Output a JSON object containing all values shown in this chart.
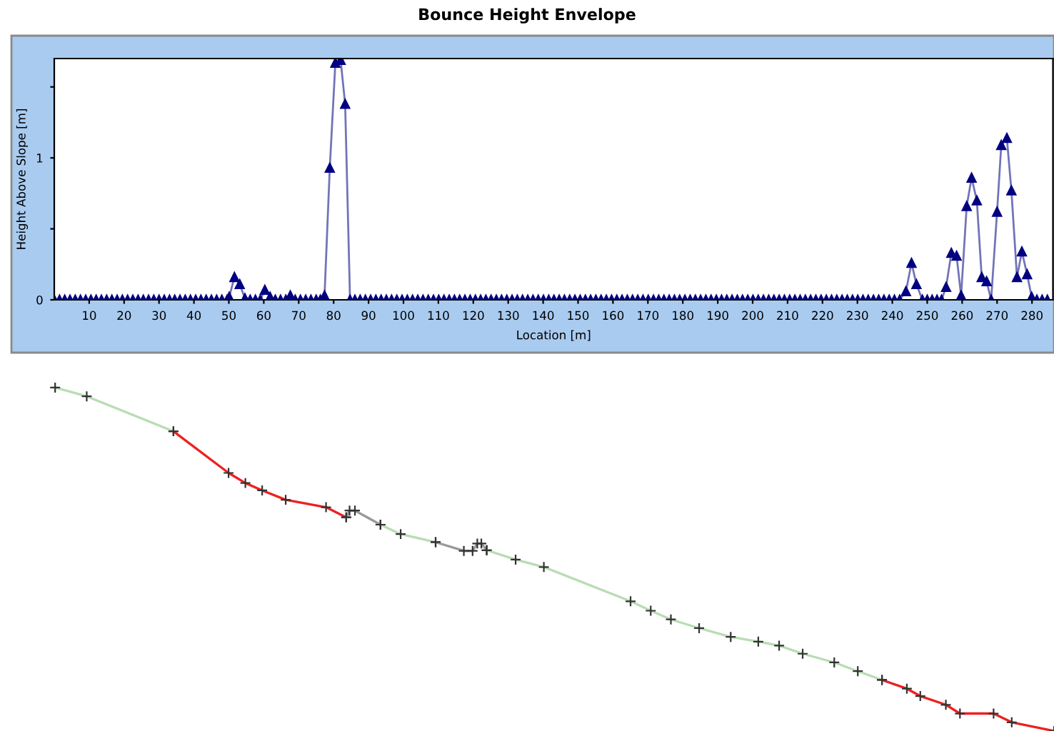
{
  "chart_data": {
    "type": "line",
    "title": "Bounce Height Envelope",
    "xlabel": "Location [m]",
    "ylabel": "Height Above Slope [m]",
    "x": [
      0,
      1.5,
      3,
      4.5,
      6,
      7.5,
      9,
      10.5,
      12,
      13.5,
      15,
      16.5,
      18,
      19.5,
      21,
      22.5,
      24,
      25.5,
      27,
      28.5,
      30,
      31.5,
      33,
      34.5,
      36,
      37.5,
      39,
      40.5,
      42,
      43.5,
      45,
      46.5,
      48,
      49.5,
      50.1,
      51.6,
      53.1,
      54.6,
      56.1,
      57.6,
      59,
      60.3,
      61.8,
      63.3,
      64.8,
      66.3,
      67.6,
      69,
      70.5,
      72,
      73.5,
      75,
      76.2,
      77.4,
      78.9,
      80.5,
      82,
      83.3,
      84.7,
      86.1,
      87.6,
      89.1,
      90.6,
      92.1,
      93.6,
      95.1,
      96.6,
      98.1,
      99.6,
      101.1,
      102.6,
      104.1,
      105.6,
      107.1,
      108.6,
      110.1,
      111.6,
      113.1,
      114.6,
      116.1,
      117.6,
      119.1,
      120.6,
      122.1,
      123.6,
      125.1,
      126.6,
      128.1,
      129.6,
      131.1,
      132.6,
      134.1,
      135.6,
      137.1,
      138.6,
      140.1,
      141.6,
      143.1,
      144.6,
      146.1,
      147.6,
      149.1,
      150.6,
      152.1,
      153.6,
      155.1,
      156.6,
      158.1,
      159.6,
      161.1,
      162.6,
      164.1,
      165.6,
      167.1,
      168.6,
      170.1,
      171.6,
      173.1,
      174.6,
      176.1,
      177.6,
      179.1,
      180.6,
      182.1,
      183.6,
      185.1,
      186.6,
      188.1,
      189.6,
      191.1,
      192.6,
      194.1,
      195.6,
      197.1,
      198.6,
      200.1,
      201.6,
      203.1,
      204.6,
      206.1,
      207.6,
      209.1,
      210.6,
      212.1,
      213.6,
      215.1,
      216.6,
      218.1,
      219.6,
      221.1,
      222.6,
      224.1,
      225.6,
      227.1,
      228.6,
      230.1,
      231.6,
      233.1,
      234.6,
      236.1,
      237.6,
      239.1,
      240.6,
      242.1,
      243.9,
      245.5,
      246.9,
      248.6,
      250,
      251.4,
      252.8,
      254.1,
      255.4,
      256.9,
      258.4,
      259.7,
      261.3,
      262.7,
      264.2,
      265.6,
      267,
      268.3,
      270,
      271.2,
      272.8,
      274.1,
      275.7,
      277.1,
      278.6,
      279.9,
      281.4,
      282.9,
      284.4
    ],
    "series": [
      {
        "color": "#000080",
        "values": [
          0,
          0,
          0,
          0,
          0,
          0,
          0,
          0,
          0,
          0,
          0,
          0,
          0,
          0,
          0,
          0,
          0,
          0,
          0,
          0,
          0,
          0,
          0,
          0,
          0,
          0,
          0,
          0,
          0,
          0,
          0,
          0,
          0,
          0,
          0.02,
          0.16,
          0.11,
          0.01,
          0,
          0,
          0,
          0.07,
          0.02,
          0,
          0,
          0,
          0.03,
          0,
          0,
          0,
          0,
          0,
          0,
          0.03,
          0.93,
          1.67,
          1.69,
          1.38,
          0,
          0,
          0,
          0,
          0,
          0,
          0,
          0,
          0,
          0,
          0,
          0,
          0,
          0,
          0,
          0,
          0,
          0,
          0,
          0,
          0,
          0,
          0,
          0,
          0,
          0,
          0,
          0,
          0,
          0,
          0,
          0,
          0,
          0,
          0,
          0,
          0,
          0,
          0,
          0,
          0,
          0,
          0,
          0,
          0,
          0,
          0,
          0,
          0,
          0,
          0,
          0,
          0,
          0,
          0,
          0,
          0,
          0,
          0,
          0,
          0,
          0,
          0,
          0,
          0,
          0,
          0,
          0,
          0,
          0,
          0,
          0,
          0,
          0,
          0,
          0,
          0,
          0,
          0,
          0,
          0,
          0,
          0,
          0,
          0,
          0,
          0,
          0,
          0,
          0,
          0,
          0,
          0,
          0,
          0,
          0,
          0,
          0,
          0,
          0,
          0,
          0,
          0,
          0,
          0,
          0,
          0.06,
          0.26,
          0.11,
          0,
          0,
          0,
          0,
          0,
          0.09,
          0.33,
          0.31,
          0.03,
          0.66,
          0.86,
          0.7,
          0.16,
          0.13,
          0,
          0.62,
          1.09,
          1.14,
          0.77,
          0.16,
          0.34,
          0.18,
          0.02,
          0,
          0,
          0
        ]
      }
    ],
    "xlim": [
      0,
      286
    ],
    "ylim": [
      0,
      1.7
    ],
    "xticks": [
      10,
      20,
      30,
      40,
      50,
      60,
      70,
      80,
      90,
      100,
      110,
      120,
      130,
      140,
      150,
      160,
      170,
      180,
      190,
      200,
      210,
      220,
      230,
      240,
      250,
      260,
      270,
      280
    ],
    "yticks": [
      0,
      {
        "value": 0.5,
        "label": null
      },
      1,
      {
        "value": 1.5,
        "label": null
      }
    ],
    "marker": "triangle",
    "line_style": "solid",
    "grid": false,
    "legend": false
  }
}
